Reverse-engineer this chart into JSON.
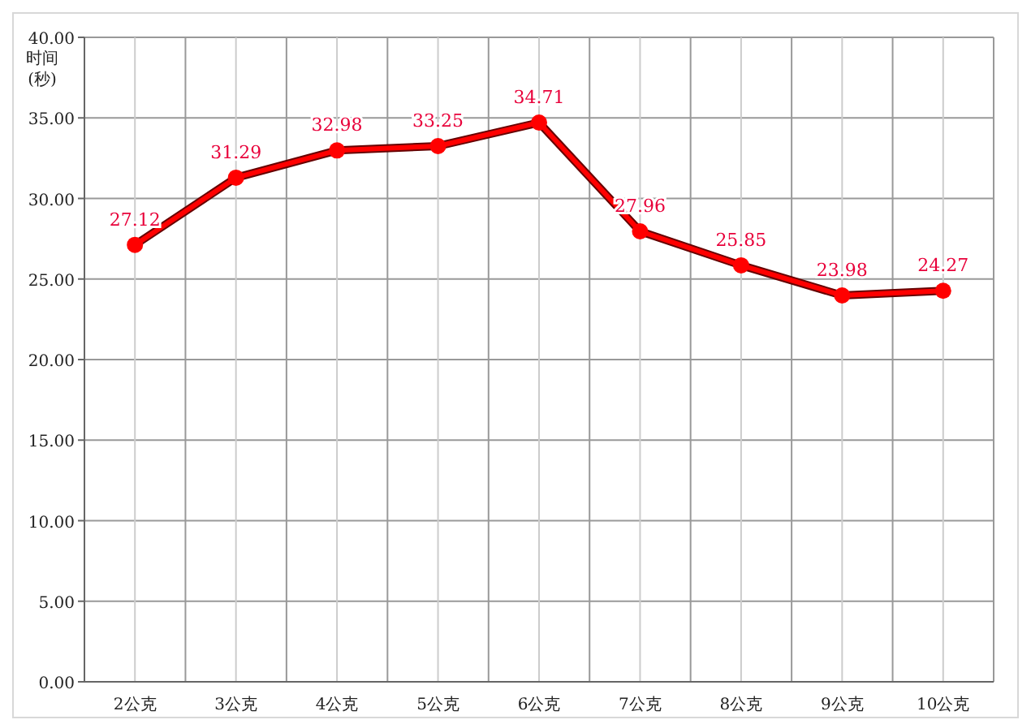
{
  "chart_data": {
    "type": "line",
    "ylabel": "时间(秒)",
    "categories": [
      "2公克",
      "3公克",
      "4公克",
      "5公克",
      "6公克",
      "7公克",
      "8公克",
      "9公克",
      "10公克"
    ],
    "series": [
      {
        "color": "#ff0000",
        "values": [
          27.12,
          31.29,
          32.98,
          33.25,
          34.71,
          27.96,
          25.85,
          23.98,
          24.27
        ]
      }
    ],
    "ylim": [
      0,
      40
    ],
    "yticks": [
      {
        "value": 0,
        "label": "0.00"
      },
      {
        "value": 5,
        "label": "5.00"
      },
      {
        "value": 10,
        "label": "10.00"
      },
      {
        "value": 15,
        "label": "15.00"
      },
      {
        "value": 20,
        "label": "20.00"
      },
      {
        "value": 25,
        "label": "25.00"
      },
      {
        "value": 30,
        "label": "30.00"
      },
      {
        "value": 35,
        "label": "35.00"
      },
      {
        "value": 40,
        "label": "40.00"
      }
    ],
    "grid": true,
    "marker": "circle",
    "line_style": "solid",
    "data_labels": true
  }
}
